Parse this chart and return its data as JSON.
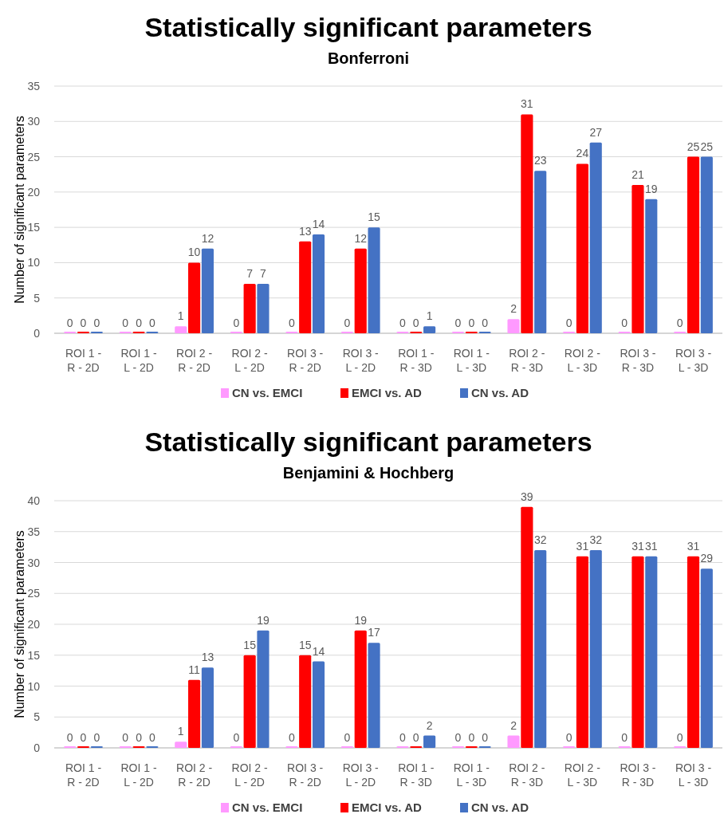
{
  "chart_data": [
    {
      "type": "bar",
      "title": "Statistically significant parameters",
      "subtitle": "Bonferroni",
      "ylabel": "Number of significant parameters",
      "categories": [
        "ROI 1 - R - 2D",
        "ROI 1 - L - 2D",
        "ROI 2 - R - 2D",
        "ROI 2 - L - 2D",
        "ROI 3 - R - 2D",
        "ROI 3 - L - 2D",
        "ROI 1 - R - 3D",
        "ROI 1 - L - 3D",
        "ROI 2 - R - 3D",
        "ROI 2 - L - 3D",
        "ROI 3 - R - 3D",
        "ROI 3 - L - 3D"
      ],
      "series": [
        {
          "name": "CN vs. EMCI",
          "color": "#ff99ff",
          "values": [
            0,
            0,
            1,
            0,
            0,
            0,
            0,
            0,
            2,
            0,
            0,
            0
          ]
        },
        {
          "name": "EMCI vs. AD",
          "color": "#ff0000",
          "values": [
            0,
            0,
            10,
            7,
            13,
            12,
            0,
            0,
            31,
            24,
            21,
            25
          ]
        },
        {
          "name": "CN vs. AD",
          "color": "#4472c4",
          "values": [
            0,
            0,
            12,
            7,
            14,
            15,
            1,
            0,
            23,
            27,
            19,
            25
          ]
        }
      ],
      "ylim": [
        0,
        35
      ],
      "yticks": [
        0,
        5,
        10,
        15,
        20,
        25,
        30,
        35
      ],
      "grid": "y",
      "legend": "bottom",
      "data_labels": true
    },
    {
      "type": "bar",
      "title": "Statistically significant parameters",
      "subtitle": "Benjamini & Hochberg",
      "ylabel": "Number of significant parameters",
      "categories": [
        "ROI 1 - R - 2D",
        "ROI 1 - L - 2D",
        "ROI 2 - R - 2D",
        "ROI 2 - L - 2D",
        "ROI 3 - R - 2D",
        "ROI 3 - L - 2D",
        "ROI 1 - R - 3D",
        "ROI 1 - L - 3D",
        "ROI 2 - R - 3D",
        "ROI 2 - L - 3D",
        "ROI 3 - R - 3D",
        "ROI 3 - L - 3D"
      ],
      "series": [
        {
          "name": "CN vs. EMCI",
          "color": "#ff99ff",
          "values": [
            0,
            0,
            1,
            0,
            0,
            0,
            0,
            0,
            2,
            0,
            0,
            0
          ]
        },
        {
          "name": "EMCI vs. AD",
          "color": "#ff0000",
          "values": [
            0,
            0,
            11,
            15,
            15,
            19,
            0,
            0,
            39,
            31,
            31,
            31
          ]
        },
        {
          "name": "CN vs. AD",
          "color": "#4472c4",
          "values": [
            0,
            0,
            13,
            19,
            14,
            17,
            2,
            0,
            32,
            32,
            31,
            29
          ]
        }
      ],
      "ylim": [
        0,
        40
      ],
      "yticks": [
        0,
        5,
        10,
        15,
        20,
        25,
        30,
        35,
        40
      ],
      "grid": "y",
      "legend": "bottom",
      "data_labels": true
    }
  ]
}
